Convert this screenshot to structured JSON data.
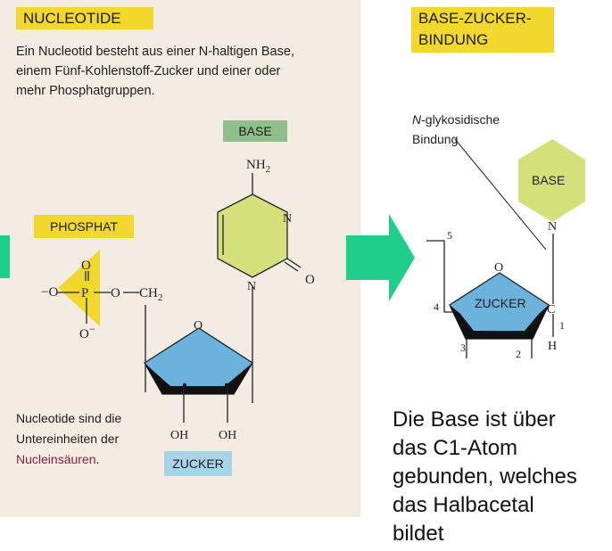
{
  "left": {
    "title": "NUCLEOTIDE",
    "intro_lines": [
      "Ein Nucleotid besteht aus einer N-haltigen Base,",
      "einem Fünf-Kohlenstoff-Zucker und einer oder",
      "mehr Phosphatgruppen."
    ],
    "base_label": "BASE",
    "phosphat_label": "PHOSPHAT",
    "zucker_label": "ZUCKER",
    "caption_line1": "Nucleotide sind die",
    "caption_line2": "Untereinheiten der",
    "caption_link": "Nucleinsäuren",
    "caption_end": ".",
    "chem": {
      "nh2": "NH",
      "nh2_sub": "2",
      "n_ring_upper": "N",
      "n_ring_lower": "N",
      "o_carbonyl": "O",
      "o_ring": "O",
      "o_phosphate_top": "O",
      "o_phosphate_left": "O",
      "o_phosphate_bottom": "O",
      "o_ester": "O",
      "p": "P",
      "ch2": "CH",
      "ch2_sub": "2",
      "minus": "−",
      "oh_left": "OH",
      "oh_right": "OH"
    }
  },
  "right": {
    "title_line1": "BASE-ZUCKER-",
    "title_line2": "BINDUNG",
    "bond_label_line1_italic": "N",
    "bond_label_line1_rest": "-glykosidische",
    "bond_label_line2": "Bindung",
    "base_label": "BASE",
    "zucker_label": "ZUCKER",
    "n": "N",
    "o": "O",
    "c": "C",
    "h": "H",
    "num_1": "1",
    "num_2": "2",
    "num_3": "3",
    "num_4": "4",
    "num_5": "5",
    "description_lines": [
      "Die Base ist über",
      "das C1-Atom",
      "gebunden, welches",
      "das Halbacetal",
      "bildet"
    ]
  },
  "colors": {
    "tag_yellow": "#f2d82c",
    "base_green": "#8fbf8a",
    "zucker_blue": "#a8d4e8",
    "sugar_fill": "#6bb2dc",
    "base_ring": "#d4e07a",
    "arrow_green": "#1dcf8a",
    "phosphate_yellow": "#f2d82c",
    "link_red": "#8a1d3c"
  }
}
